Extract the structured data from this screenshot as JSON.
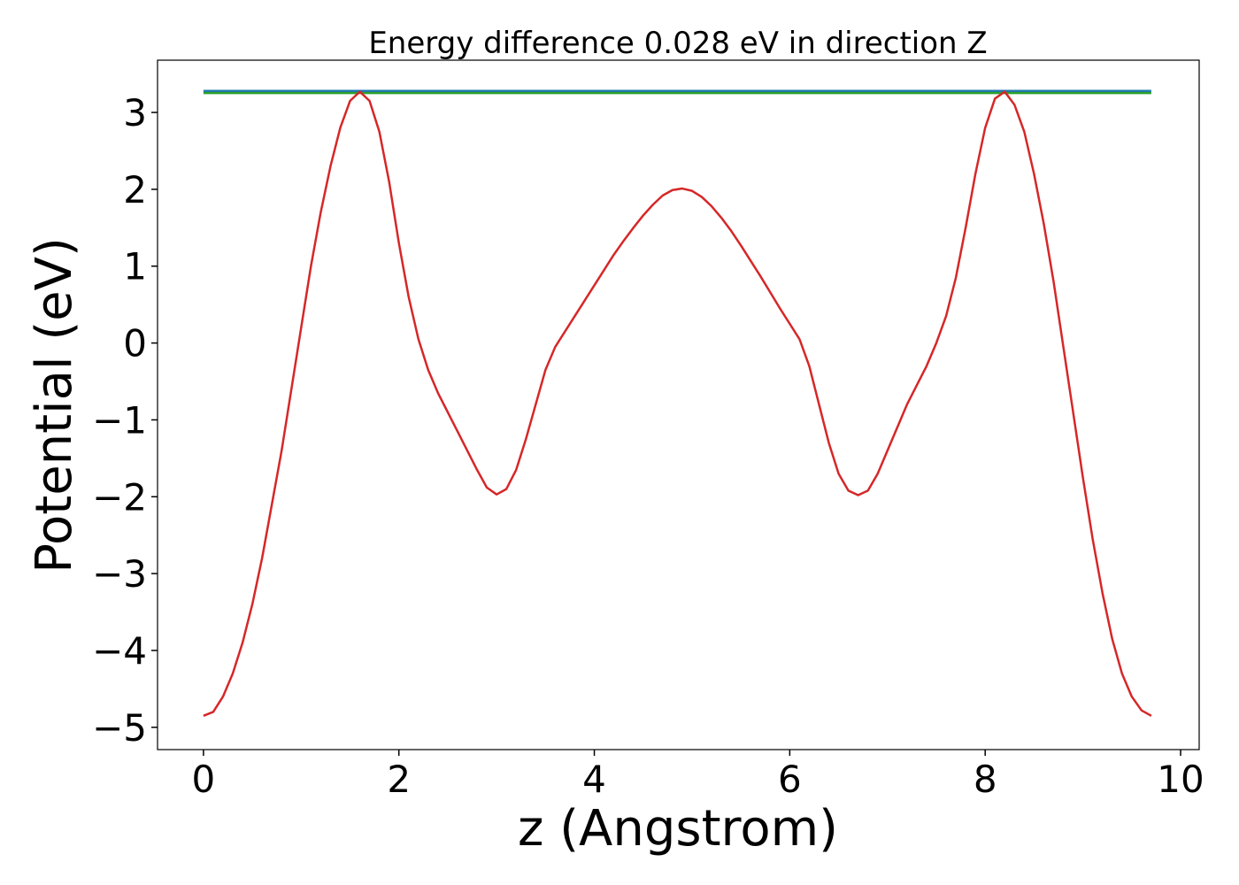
{
  "chart_data": {
    "type": "line",
    "title": "Energy difference 0.028 eV in direction Z",
    "xlabel": "z (Angstrom)",
    "ylabel": "Potential (eV)",
    "xlim": [
      -0.47,
      10.19
    ],
    "ylim": [
      -5.29,
      3.68
    ],
    "xticks": [
      0,
      2,
      4,
      6,
      8,
      10
    ],
    "yticks": [
      {
        "value": -5,
        "label": "−5"
      },
      {
        "value": -4,
        "label": "−4"
      },
      {
        "value": -3,
        "label": "−3"
      },
      {
        "value": -2,
        "label": "−2"
      },
      {
        "value": -1,
        "label": "−1"
      },
      0,
      1,
      2,
      3
    ],
    "series": [
      {
        "color": "#1f77b4",
        "x": [
          0,
          9.7
        ],
        "values": [
          3.28,
          3.28
        ]
      },
      {
        "color": "#2ca02c",
        "x": [
          0,
          9.7
        ],
        "values": [
          3.252,
          3.252
        ]
      },
      {
        "color": "#d62728",
        "x": [
          0,
          0.1,
          0.2,
          0.3,
          0.4,
          0.5,
          0.6,
          0.7,
          0.8,
          0.9,
          1.0,
          1.1,
          1.2,
          1.3,
          1.4,
          1.5,
          1.6,
          1.7,
          1.8,
          1.9,
          2.0,
          2.1,
          2.2,
          2.3,
          2.4,
          2.5,
          2.6,
          2.7,
          2.8,
          2.9,
          3.0,
          3.1,
          3.2,
          3.3,
          3.4,
          3.5,
          3.6,
          3.7,
          3.8,
          3.9,
          4.0,
          4.1,
          4.2,
          4.3,
          4.4,
          4.5,
          4.6,
          4.7,
          4.8,
          4.9,
          5.0,
          5.1,
          5.2,
          5.3,
          5.4,
          5.5,
          5.6,
          5.7,
          5.8,
          5.9,
          6.0,
          6.1,
          6.2,
          6.3,
          6.4,
          6.5,
          6.6,
          6.7,
          6.8,
          6.9,
          7.0,
          7.1,
          7.2,
          7.3,
          7.4,
          7.5,
          7.6,
          7.7,
          7.8,
          7.9,
          8.0,
          8.1,
          8.2,
          8.3,
          8.4,
          8.5,
          8.6,
          8.7,
          8.8,
          8.9,
          9.0,
          9.1,
          9.2,
          9.3,
          9.4,
          9.5,
          9.6,
          9.7
        ],
        "values": [
          -4.85,
          -4.8,
          -4.6,
          -4.3,
          -3.9,
          -3.4,
          -2.8,
          -2.1,
          -1.4,
          -0.6,
          0.2,
          1.0,
          1.7,
          2.3,
          2.8,
          3.15,
          3.27,
          3.15,
          2.75,
          2.1,
          1.3,
          0.6,
          0.05,
          -0.35,
          -0.65,
          -0.9,
          -1.15,
          -1.4,
          -1.65,
          -1.88,
          -1.97,
          -1.9,
          -1.65,
          -1.25,
          -0.8,
          -0.35,
          -0.05,
          0.15,
          0.35,
          0.55,
          0.75,
          0.95,
          1.15,
          1.33,
          1.5,
          1.66,
          1.8,
          1.92,
          1.99,
          2.01,
          1.98,
          1.9,
          1.78,
          1.63,
          1.46,
          1.27,
          1.07,
          0.87,
          0.66,
          0.45,
          0.25,
          0.05,
          -0.3,
          -0.8,
          -1.3,
          -1.7,
          -1.92,
          -1.98,
          -1.92,
          -1.7,
          -1.4,
          -1.1,
          -0.8,
          -0.55,
          -0.3,
          0.0,
          0.35,
          0.85,
          1.5,
          2.2,
          2.8,
          3.18,
          3.27,
          3.1,
          2.75,
          2.2,
          1.55,
          0.8,
          -0.05,
          -0.9,
          -1.75,
          -2.55,
          -3.25,
          -3.85,
          -4.3,
          -4.6,
          -4.78,
          -4.85
        ]
      }
    ]
  }
}
